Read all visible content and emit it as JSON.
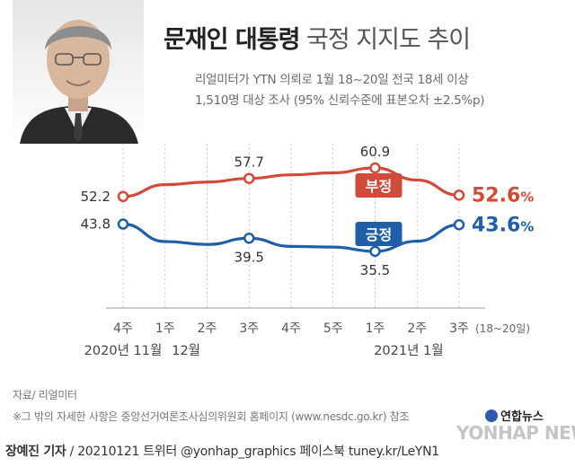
{
  "header": {
    "title_strong": "문재인 대통령",
    "title_light": "국정 지지도 추이",
    "subtitle_line1": "리얼미터가 YTN 의뢰로 1월 18~20일 전국 18세 이상",
    "subtitle_line2": "1,510명 대상 조사 (95% 신뢰수준에 표본오차 ±2.5%p)"
  },
  "chart_data": {
    "type": "line",
    "categories": [
      "4주",
      "1주",
      "2주",
      "3주",
      "4주",
      "5주",
      "1주",
      "2주",
      "3주"
    ],
    "last_category_note": "(18~20일)",
    "month_labels": [
      {
        "text": "2020년 11월",
        "index": 0
      },
      {
        "text": "12월",
        "index": 1.5
      },
      {
        "text": "2021년 1월",
        "index": 6.8
      }
    ],
    "ylim": [
      30,
      65
    ],
    "unit": "%",
    "series": [
      {
        "name": "부정",
        "color": "#d24a3a",
        "values": [
          52.2,
          55.8,
          56.6,
          57.7,
          58.8,
          59.4,
          60.9,
          57.2,
          52.6
        ],
        "labeled": [
          {
            "index": 0,
            "text": "52.2"
          },
          {
            "index": 3,
            "text": "57.7"
          },
          {
            "index": 6,
            "text": "60.9"
          },
          {
            "index": 8,
            "text": "52.6",
            "suffix": "%",
            "emphasis": true
          }
        ]
      },
      {
        "name": "긍정",
        "color": "#1f5fa8",
        "values": [
          43.8,
          38.5,
          37.6,
          39.5,
          37.0,
          36.8,
          35.5,
          38.6,
          43.6
        ],
        "labeled": [
          {
            "index": 0,
            "text": "43.8"
          },
          {
            "index": 3,
            "text": "39.5"
          },
          {
            "index": 6,
            "text": "35.5"
          },
          {
            "index": 8,
            "text": "43.6",
            "suffix": "%",
            "emphasis": true
          }
        ]
      }
    ]
  },
  "footer": {
    "source": "자료/ 리얼미터",
    "note": "※그 밖의 자세한 사항은 중앙선거여론조사심의위원회 홈페이지 (www.nesdc.go.kr) 참조",
    "logo": "연합뉴스",
    "watermark": "YONHAP NEWS",
    "credit_author": "장예진 기자",
    "credit_rest": " / 20210121  트위터 @yonhap_graphics  페이스북 tuney.kr/LeYN1"
  }
}
